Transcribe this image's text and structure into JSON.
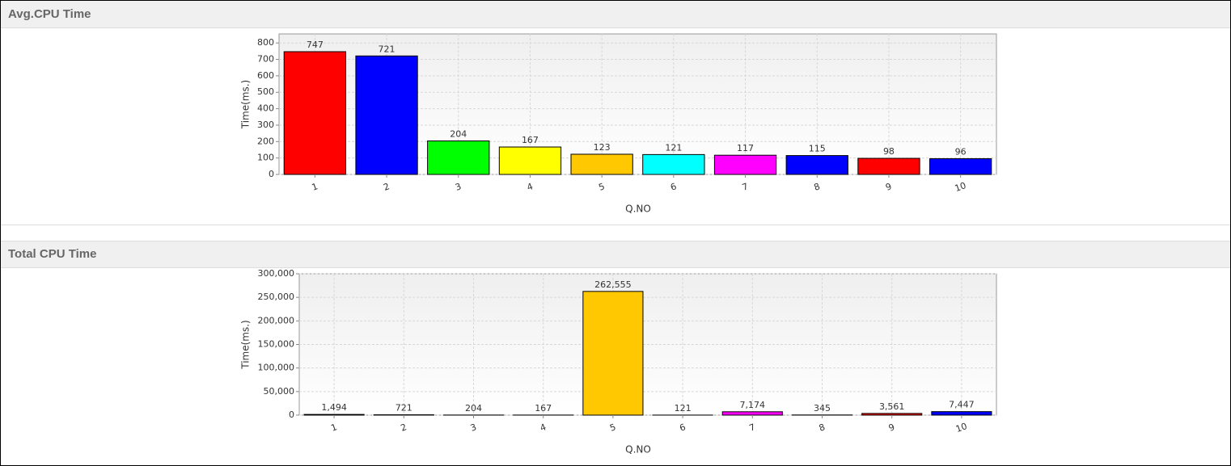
{
  "chart_data": [
    {
      "type": "bar",
      "title": "Avg.CPU Time",
      "x_label": "Q.NO",
      "y_label": "Time(ms.)",
      "categories": [
        "1",
        "2",
        "3",
        "4",
        "5",
        "6",
        "7",
        "8",
        "9",
        "10"
      ],
      "values": [
        747,
        721,
        204,
        167,
        123,
        121,
        117,
        115,
        98,
        96
      ],
      "colors": [
        "#ff0000",
        "#0000ff",
        "#00ff00",
        "#ffff00",
        "#ffc800",
        "#00ffff",
        "#ff00ff",
        "#0000ff",
        "#ff0000",
        "#0000ff"
      ],
      "ylim": [
        0,
        855
      ],
      "yticks": [
        0,
        100,
        200,
        300,
        400,
        500,
        600,
        700,
        800
      ],
      "grid": true
    },
    {
      "type": "bar",
      "title": "Total CPU Time",
      "x_label": "Q.NO",
      "y_label": "Time(ms.)",
      "categories": [
        "1",
        "2",
        "3",
        "4",
        "5",
        "6",
        "7",
        "8",
        "9",
        "10"
      ],
      "values": [
        1494,
        721,
        204,
        167,
        262555,
        121,
        7174,
        345,
        3561,
        7447
      ],
      "value_labels": [
        "1,494",
        "721",
        "204",
        "167",
        "262,555",
        "121",
        "7,174",
        "345",
        "3,561",
        "7,447"
      ],
      "colors": [
        "#ff0000",
        "#0000ff",
        "#00ff00",
        "#ffff00",
        "#ffc800",
        "#00ffff",
        "#ff00ff",
        "#0000ff",
        "#ff0000",
        "#0000ff"
      ],
      "ylim": [
        0,
        300000
      ],
      "yticks": [
        0,
        {
          "value": 50000,
          "label": "50,000"
        },
        {
          "value": 100000,
          "label": "100,000"
        },
        {
          "value": 150000,
          "label": "150,000"
        },
        {
          "value": 200000,
          "label": "200,000"
        },
        {
          "value": 250000,
          "label": "250,000"
        },
        {
          "value": 300000,
          "label": "300,000"
        }
      ],
      "grid": true
    }
  ]
}
